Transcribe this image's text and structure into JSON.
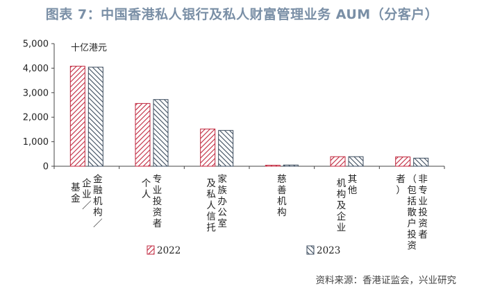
{
  "title": "图表 7：中国香港私人银行及私人财富管理业务 AUM（分客户）",
  "source": "资料来源：香港证监会，兴业研究",
  "colors": {
    "s2022": "#c0263c",
    "s2023": "#3a4a5c",
    "title": "#7a8fa6"
  },
  "chart_data": {
    "type": "bar",
    "unit": "十亿港元",
    "categories": [
      "金融机构／基金企业／",
      "专业投资者个人",
      "家族办公室及私人信托",
      "慈善机构",
      "其他机构及企业",
      "非专业投资者（包括散户投资者）"
    ],
    "category_columns": [
      [
        [
          "金",
          "融",
          "机",
          "构",
          "／"
        ],
        [
          "企",
          "业",
          "／"
        ],
        [
          "基",
          "金"
        ]
      ],
      [
        [
          "专",
          "业",
          "投",
          "资",
          "者"
        ],
        [
          "个",
          "人"
        ]
      ],
      [
        [
          "家",
          "族",
          "办",
          "公",
          "室"
        ],
        [
          "及",
          "私",
          "人",
          "信",
          "托"
        ]
      ],
      [
        [
          "慈",
          "善",
          "机",
          "构"
        ]
      ],
      [
        [
          "其",
          "他"
        ],
        [
          "机",
          "构",
          "及",
          "企",
          "业"
        ]
      ],
      [
        [
          "非",
          "专",
          "业",
          "投",
          "资",
          "者"
        ],
        [
          "（",
          "包",
          "括",
          "散",
          "户",
          "投",
          "资"
        ],
        [
          "者",
          "）"
        ]
      ]
    ],
    "series": [
      {
        "name": "2022",
        "values": [
          4080,
          2560,
          1520,
          40,
          390,
          380
        ]
      },
      {
        "name": "2023",
        "values": [
          4040,
          2720,
          1460,
          50,
          390,
          330
        ]
      }
    ],
    "ylim": [
      0,
      5000
    ],
    "yticks": [
      "0",
      "1,000",
      "2,000",
      "3,000",
      "4,000",
      "5,000"
    ],
    "grid": false,
    "legend_position": "bottom"
  }
}
